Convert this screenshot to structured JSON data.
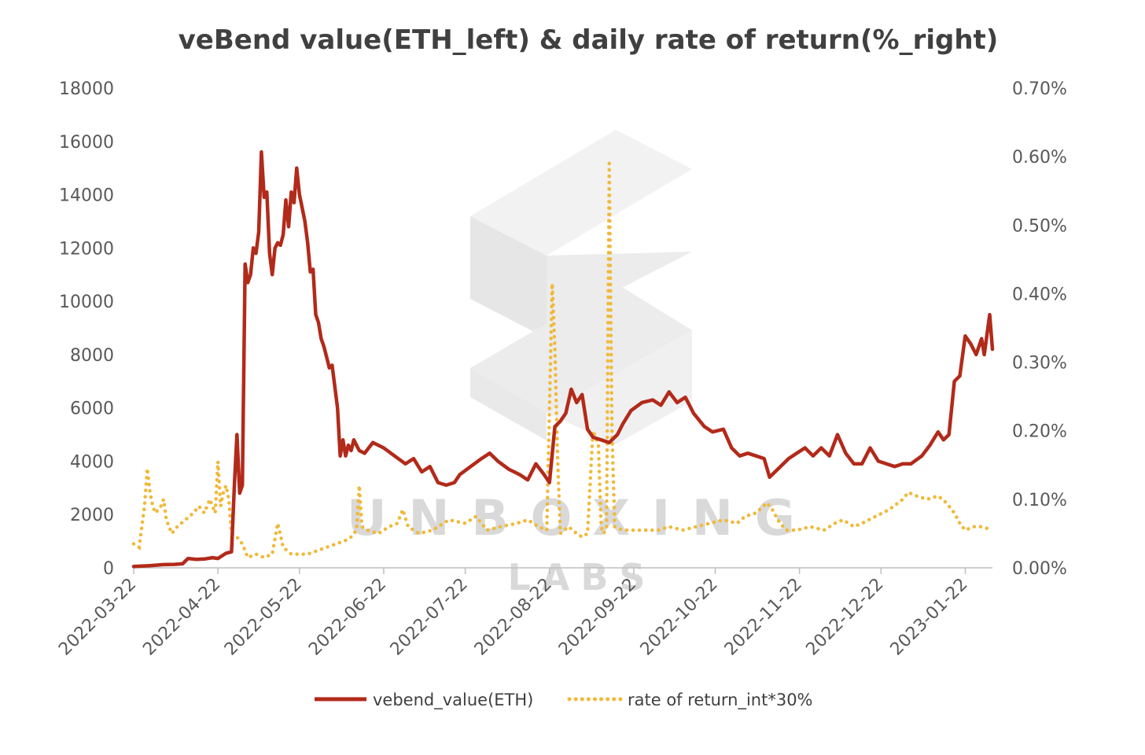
{
  "chart_data": {
    "type": "line",
    "title": "veBend value(ETH_left) & daily rate of return(%_right)",
    "y_left": {
      "ylim": [
        0,
        18000
      ],
      "ticks": [
        "0",
        "2000",
        "4000",
        "6000",
        "8000",
        "10000",
        "12000",
        "14000",
        "16000",
        "18000"
      ]
    },
    "y_right": {
      "ylim": [
        0,
        0.7
      ],
      "ticks": [
        "0.00%",
        "0.10%",
        "0.20%",
        "0.30%",
        "0.40%",
        "0.50%",
        "0.60%",
        "0.70%"
      ]
    },
    "x_range": [
      "2022-03-22",
      "2023-02-01"
    ],
    "x_ticks": [
      "2022-03-22",
      "2022-04-22",
      "2022-05-22",
      "2022-06-22",
      "2022-07-22",
      "2022-08-22",
      "2022-09-22",
      "2022-10-22",
      "2022-11-22",
      "2022-12-22",
      "2023-01-22"
    ],
    "grid": false,
    "legend_position": "bottom",
    "watermark": {
      "line1": "UNBOXING",
      "line2": "LABS"
    },
    "series": [
      {
        "name": "vebend_value(ETH)",
        "axis": "left",
        "color": "#b22a1a",
        "style": "solid",
        "points": [
          [
            "2022-03-22",
            50
          ],
          [
            "2022-03-28",
            80
          ],
          [
            "2022-04-02",
            120
          ],
          [
            "2022-04-06",
            130
          ],
          [
            "2022-04-09",
            150
          ],
          [
            "2022-04-11",
            350
          ],
          [
            "2022-04-14",
            320
          ],
          [
            "2022-04-17",
            330
          ],
          [
            "2022-04-20",
            380
          ],
          [
            "2022-04-22",
            350
          ],
          [
            "2022-04-25",
            550
          ],
          [
            "2022-04-27",
            600
          ],
          [
            "2022-04-28",
            3000
          ],
          [
            "2022-04-29",
            5000
          ],
          [
            "2022-04-30",
            2800
          ],
          [
            "2022-05-01",
            3100
          ],
          [
            "2022-05-02",
            11400
          ],
          [
            "2022-05-03",
            10700
          ],
          [
            "2022-05-04",
            11000
          ],
          [
            "2022-05-05",
            12000
          ],
          [
            "2022-05-06",
            11800
          ],
          [
            "2022-05-07",
            12600
          ],
          [
            "2022-05-08",
            15600
          ],
          [
            "2022-05-09",
            13900
          ],
          [
            "2022-05-10",
            14100
          ],
          [
            "2022-05-11",
            11800
          ],
          [
            "2022-05-12",
            11000
          ],
          [
            "2022-05-13",
            12000
          ],
          [
            "2022-05-14",
            12200
          ],
          [
            "2022-05-15",
            12100
          ],
          [
            "2022-05-16",
            12500
          ],
          [
            "2022-05-17",
            13800
          ],
          [
            "2022-05-18",
            12800
          ],
          [
            "2022-05-19",
            14100
          ],
          [
            "2022-05-20",
            13700
          ],
          [
            "2022-05-21",
            15000
          ],
          [
            "2022-05-22",
            14000
          ],
          [
            "2022-05-23",
            13500
          ],
          [
            "2022-05-24",
            13000
          ],
          [
            "2022-05-25",
            12200
          ],
          [
            "2022-05-26",
            11100
          ],
          [
            "2022-05-27",
            11200
          ],
          [
            "2022-05-28",
            9500
          ],
          [
            "2022-05-29",
            9200
          ],
          [
            "2022-05-30",
            8600
          ],
          [
            "2022-05-31",
            8300
          ],
          [
            "2022-06-01",
            7900
          ],
          [
            "2022-06-02",
            7500
          ],
          [
            "2022-06-03",
            7600
          ],
          [
            "2022-06-05",
            6000
          ],
          [
            "2022-06-06",
            4200
          ],
          [
            "2022-06-07",
            4800
          ],
          [
            "2022-06-08",
            4200
          ],
          [
            "2022-06-09",
            4600
          ],
          [
            "2022-06-10",
            4400
          ],
          [
            "2022-06-11",
            4800
          ],
          [
            "2022-06-13",
            4400
          ],
          [
            "2022-06-15",
            4300
          ],
          [
            "2022-06-18",
            4700
          ],
          [
            "2022-06-22",
            4500
          ],
          [
            "2022-06-26",
            4200
          ],
          [
            "2022-06-30",
            3900
          ],
          [
            "2022-07-03",
            4100
          ],
          [
            "2022-07-06",
            3600
          ],
          [
            "2022-07-09",
            3800
          ],
          [
            "2022-07-12",
            3200
          ],
          [
            "2022-07-15",
            3100
          ],
          [
            "2022-07-18",
            3200
          ],
          [
            "2022-07-20",
            3500
          ],
          [
            "2022-07-24",
            3800
          ],
          [
            "2022-07-28",
            4100
          ],
          [
            "2022-07-31",
            4300
          ],
          [
            "2022-08-03",
            4000
          ],
          [
            "2022-08-07",
            3700
          ],
          [
            "2022-08-11",
            3500
          ],
          [
            "2022-08-14",
            3300
          ],
          [
            "2022-08-17",
            3900
          ],
          [
            "2022-08-20",
            3500
          ],
          [
            "2022-08-22",
            3200
          ],
          [
            "2022-08-24",
            5300
          ],
          [
            "2022-08-26",
            5500
          ],
          [
            "2022-08-28",
            5800
          ],
          [
            "2022-08-30",
            6700
          ],
          [
            "2022-09-01",
            6200
          ],
          [
            "2022-09-03",
            6500
          ],
          [
            "2022-09-05",
            5200
          ],
          [
            "2022-09-07",
            4900
          ],
          [
            "2022-09-10",
            4800
          ],
          [
            "2022-09-13",
            4700
          ],
          [
            "2022-09-16",
            5000
          ],
          [
            "2022-09-18",
            5400
          ],
          [
            "2022-09-21",
            5900
          ],
          [
            "2022-09-25",
            6200
          ],
          [
            "2022-09-29",
            6300
          ],
          [
            "2022-10-02",
            6100
          ],
          [
            "2022-10-05",
            6600
          ],
          [
            "2022-10-08",
            6200
          ],
          [
            "2022-10-11",
            6400
          ],
          [
            "2022-10-14",
            5800
          ],
          [
            "2022-10-18",
            5300
          ],
          [
            "2022-10-21",
            5100
          ],
          [
            "2022-10-25",
            5200
          ],
          [
            "2022-10-28",
            4500
          ],
          [
            "2022-10-31",
            4200
          ],
          [
            "2022-11-03",
            4300
          ],
          [
            "2022-11-06",
            4200
          ],
          [
            "2022-11-09",
            4100
          ],
          [
            "2022-11-11",
            3400
          ],
          [
            "2022-11-13",
            3600
          ],
          [
            "2022-11-15",
            3800
          ],
          [
            "2022-11-18",
            4100
          ],
          [
            "2022-11-21",
            4300
          ],
          [
            "2022-11-24",
            4500
          ],
          [
            "2022-11-27",
            4200
          ],
          [
            "2022-11-30",
            4500
          ],
          [
            "2022-12-03",
            4200
          ],
          [
            "2022-12-06",
            5000
          ],
          [
            "2022-12-09",
            4300
          ],
          [
            "2022-12-12",
            3900
          ],
          [
            "2022-12-15",
            3900
          ],
          [
            "2022-12-18",
            4500
          ],
          [
            "2022-12-21",
            4000
          ],
          [
            "2022-12-24",
            3900
          ],
          [
            "2022-12-27",
            3800
          ],
          [
            "2022-12-30",
            3900
          ],
          [
            "2023-01-02",
            3900
          ],
          [
            "2023-01-06",
            4200
          ],
          [
            "2023-01-09",
            4600
          ],
          [
            "2023-01-12",
            5100
          ],
          [
            "2023-01-14",
            4800
          ],
          [
            "2023-01-16",
            5000
          ],
          [
            "2023-01-18",
            7000
          ],
          [
            "2023-01-20",
            7200
          ],
          [
            "2023-01-22",
            8700
          ],
          [
            "2023-01-24",
            8400
          ],
          [
            "2023-01-26",
            8000
          ],
          [
            "2023-01-28",
            8600
          ],
          [
            "2023-01-29",
            8000
          ],
          [
            "2023-01-31",
            9500
          ],
          [
            "2023-02-01",
            8200
          ]
        ]
      },
      {
        "name": "rate of return_int*30%",
        "axis": "right",
        "color": "#f0b93a",
        "style": "dotted",
        "points": [
          [
            "2022-03-22",
            0.035
          ],
          [
            "2022-03-24",
            0.03
          ],
          [
            "2022-03-26",
            0.09
          ],
          [
            "2022-03-27",
            0.145
          ],
          [
            "2022-03-28",
            0.11
          ],
          [
            "2022-03-29",
            0.09
          ],
          [
            "2022-03-30",
            0.08
          ],
          [
            "2022-04-01",
            0.09
          ],
          [
            "2022-04-02",
            0.1
          ],
          [
            "2022-04-03",
            0.07
          ],
          [
            "2022-04-05",
            0.05
          ],
          [
            "2022-04-07",
            0.06
          ],
          [
            "2022-04-10",
            0.07
          ],
          [
            "2022-04-13",
            0.08
          ],
          [
            "2022-04-15",
            0.09
          ],
          [
            "2022-04-17",
            0.08
          ],
          [
            "2022-04-19",
            0.1
          ],
          [
            "2022-04-21",
            0.08
          ],
          [
            "2022-04-22",
            0.155
          ],
          [
            "2022-04-23",
            0.09
          ],
          [
            "2022-04-24",
            0.11
          ],
          [
            "2022-04-25",
            0.12
          ],
          [
            "2022-04-26",
            0.1
          ],
          [
            "2022-04-27",
            0.05
          ],
          [
            "2022-04-29",
            0.045
          ],
          [
            "2022-05-01",
            0.035
          ],
          [
            "2022-05-03",
            0.015
          ],
          [
            "2022-05-06",
            0.02
          ],
          [
            "2022-05-09",
            0.015
          ],
          [
            "2022-05-12",
            0.02
          ],
          [
            "2022-05-14",
            0.065
          ],
          [
            "2022-05-16",
            0.03
          ],
          [
            "2022-05-19",
            0.02
          ],
          [
            "2022-05-25",
            0.02
          ],
          [
            "2022-06-01",
            0.03
          ],
          [
            "2022-06-08",
            0.04
          ],
          [
            "2022-06-10",
            0.045
          ],
          [
            "2022-06-12",
            0.055
          ],
          [
            "2022-06-13",
            0.12
          ],
          [
            "2022-06-14",
            0.06
          ],
          [
            "2022-06-16",
            0.055
          ],
          [
            "2022-06-20",
            0.05
          ],
          [
            "2022-06-24",
            0.06
          ],
          [
            "2022-06-27",
            0.065
          ],
          [
            "2022-06-29",
            0.085
          ],
          [
            "2022-07-01",
            0.06
          ],
          [
            "2022-07-05",
            0.05
          ],
          [
            "2022-07-10",
            0.055
          ],
          [
            "2022-07-16",
            0.07
          ],
          [
            "2022-07-22",
            0.065
          ],
          [
            "2022-07-26",
            0.075
          ],
          [
            "2022-07-30",
            0.055
          ],
          [
            "2022-08-04",
            0.06
          ],
          [
            "2022-08-10",
            0.065
          ],
          [
            "2022-08-14",
            0.07
          ],
          [
            "2022-08-18",
            0.06
          ],
          [
            "2022-08-21",
            0.055
          ],
          [
            "2022-08-23",
            0.415
          ],
          [
            "2022-08-24",
            0.32
          ],
          [
            "2022-08-25",
            0.16
          ],
          [
            "2022-08-26",
            0.05
          ],
          [
            "2022-08-29",
            0.06
          ],
          [
            "2022-09-01",
            0.05
          ],
          [
            "2022-09-03",
            0.045
          ],
          [
            "2022-09-05",
            0.05
          ],
          [
            "2022-09-07",
            0.2
          ],
          [
            "2022-09-09",
            0.18
          ],
          [
            "2022-09-10",
            0.06
          ],
          [
            "2022-09-11",
            0.05
          ],
          [
            "2022-09-12",
            0.06
          ],
          [
            "2022-09-13",
            0.59
          ],
          [
            "2022-09-14",
            0.2
          ],
          [
            "2022-09-15",
            0.06
          ],
          [
            "2022-09-18",
            0.055
          ],
          [
            "2022-09-25",
            0.055
          ],
          [
            "2022-10-01",
            0.055
          ],
          [
            "2022-10-05",
            0.06
          ],
          [
            "2022-10-10",
            0.055
          ],
          [
            "2022-10-15",
            0.06
          ],
          [
            "2022-10-20",
            0.065
          ],
          [
            "2022-10-25",
            0.07
          ],
          [
            "2022-10-30",
            0.065
          ],
          [
            "2022-11-02",
            0.075
          ],
          [
            "2022-11-06",
            0.08
          ],
          [
            "2022-11-10",
            0.095
          ],
          [
            "2022-11-12",
            0.085
          ],
          [
            "2022-11-14",
            0.07
          ],
          [
            "2022-11-17",
            0.055
          ],
          [
            "2022-11-21",
            0.055
          ],
          [
            "2022-11-26",
            0.06
          ],
          [
            "2022-12-01",
            0.055
          ],
          [
            "2022-12-05",
            0.065
          ],
          [
            "2022-12-08",
            0.07
          ],
          [
            "2022-12-12",
            0.06
          ],
          [
            "2022-12-15",
            0.065
          ],
          [
            "2022-12-20",
            0.075
          ],
          [
            "2022-12-25",
            0.085
          ],
          [
            "2022-12-30",
            0.1
          ],
          [
            "2023-01-01",
            0.11
          ],
          [
            "2023-01-04",
            0.105
          ],
          [
            "2023-01-08",
            0.1
          ],
          [
            "2023-01-12",
            0.105
          ],
          [
            "2023-01-15",
            0.095
          ],
          [
            "2023-01-18",
            0.08
          ],
          [
            "2023-01-20",
            0.065
          ],
          [
            "2023-01-22",
            0.055
          ],
          [
            "2023-01-25",
            0.06
          ],
          [
            "2023-01-28",
            0.06
          ],
          [
            "2023-02-01",
            0.055
          ]
        ]
      }
    ]
  }
}
